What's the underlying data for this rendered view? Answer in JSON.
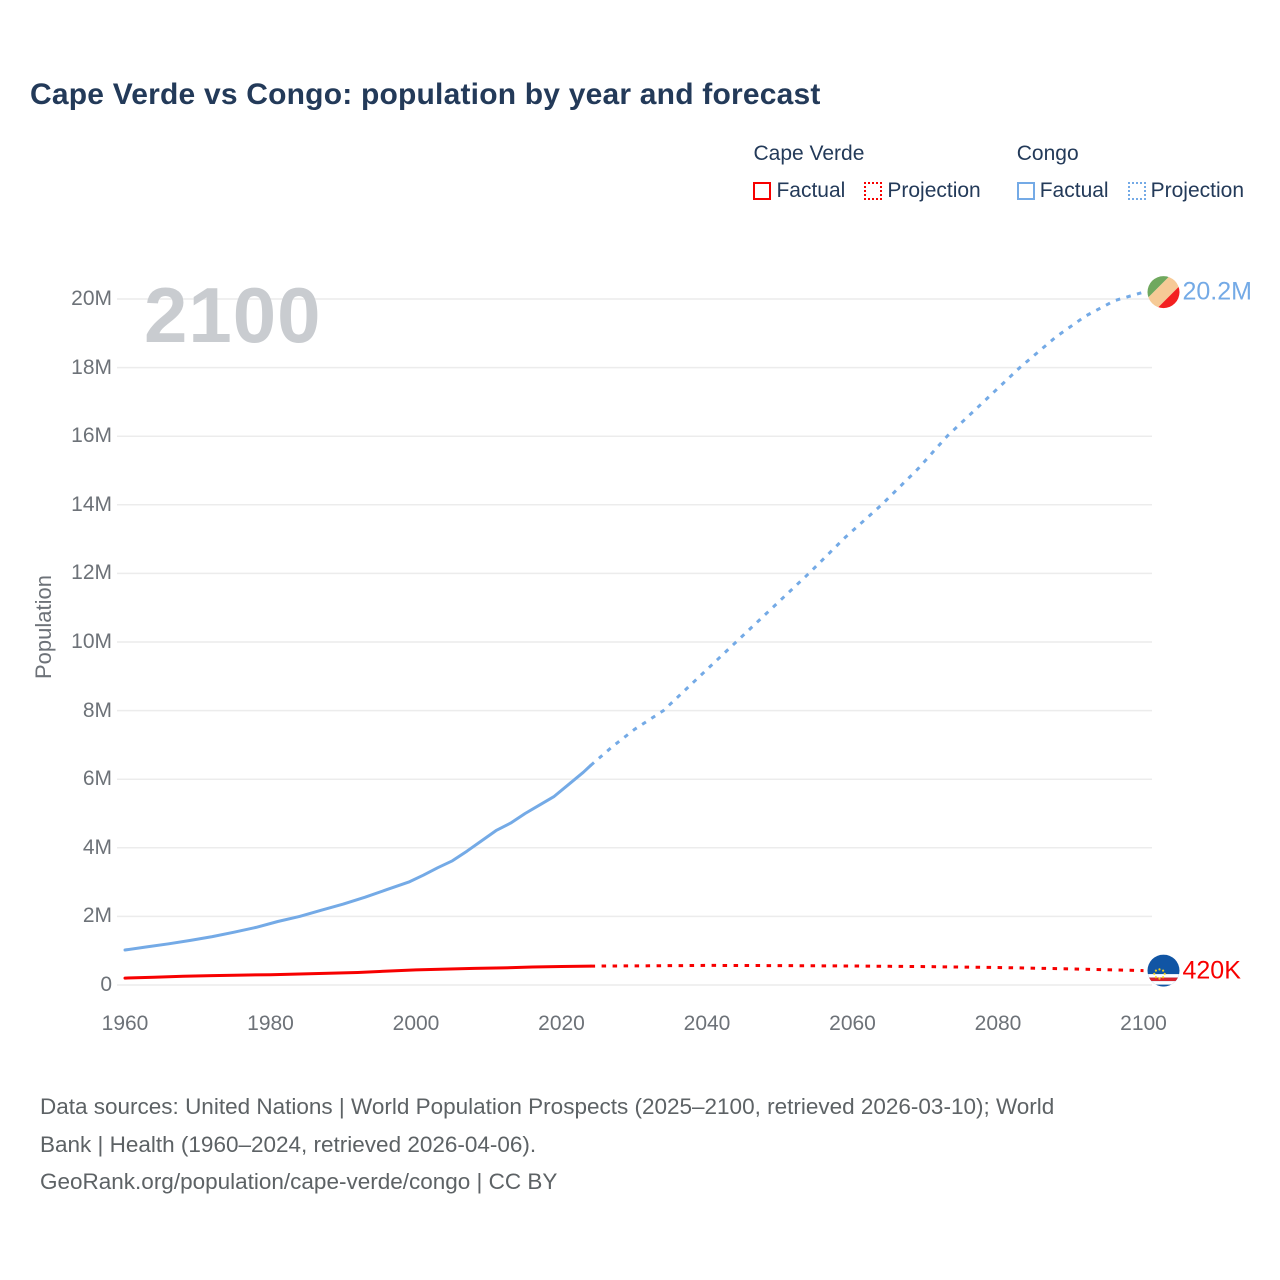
{
  "header": {
    "title": "Cape Verde vs Congo: population by year and forecast"
  },
  "legend": {
    "groups": [
      {
        "label": "Cape Verde",
        "items": [
          {
            "label": "Factual",
            "style": "solid",
            "color": "#f70000"
          },
          {
            "label": "Projection",
            "style": "dotted",
            "color": "#f70000"
          }
        ]
      },
      {
        "label": "Congo",
        "items": [
          {
            "label": "Factual",
            "style": "solid",
            "color": "#74aae6"
          },
          {
            "label": "Projection",
            "style": "dotted",
            "color": "#74aae6"
          }
        ]
      }
    ]
  },
  "footer": {
    "lines": [
      "Data sources: United Nations | World Population Prospects (2025–2100, retrieved 2026-03-10); World",
      "Bank | Health (1960–2024, retrieved 2026-04-06).",
      "GeoRank.org/population/cape-verde/congo | CC BY"
    ]
  },
  "colors": {
    "cape_verde": "#f70000",
    "congo": "#74aae6",
    "heading_navy": "#233a59",
    "axis_gray": "#6d7278",
    "watermark_gray": "#c9ccd0",
    "gridline_gray": "#ececec",
    "footer_gray": "#5d6265"
  },
  "chart_data": {
    "type": "line",
    "title": "Cape Verde vs Congo: population by year and forecast",
    "watermark": "2100",
    "xlabel": "",
    "y_axis_label": "Population",
    "units": "millions of people",
    "x_range": [
      1960,
      2100
    ],
    "y_range_millions": [
      0,
      20.55
    ],
    "grid": "horizontal",
    "legend_position": "top-right",
    "x_ticks": [
      1960,
      1980,
      2000,
      2020,
      2040,
      2060,
      2080,
      2100
    ],
    "y_ticks": [
      {
        "value_m": 0,
        "label": "0"
      },
      {
        "value_m": 2,
        "label": "2M"
      },
      {
        "value_m": 4,
        "label": "4M"
      },
      {
        "value_m": 6,
        "label": "6M"
      },
      {
        "value_m": 8,
        "label": "8M"
      },
      {
        "value_m": 10,
        "label": "10M"
      },
      {
        "value_m": 12,
        "label": "12M"
      },
      {
        "value_m": 14,
        "label": "14M"
      },
      {
        "value_m": 16,
        "label": "16M"
      },
      {
        "value_m": 18,
        "label": "18M"
      },
      {
        "value_m": 20,
        "label": "20M"
      }
    ],
    "series": [
      {
        "country": "Congo",
        "segment": "Factual",
        "style": "solid",
        "color": "#74aae6",
        "points": [
          [
            1960,
            1.02
          ],
          [
            1963,
            1.11
          ],
          [
            1966,
            1.2
          ],
          [
            1969,
            1.3
          ],
          [
            1972,
            1.41
          ],
          [
            1975,
            1.54
          ],
          [
            1978,
            1.68
          ],
          [
            1981,
            1.85
          ],
          [
            1984,
            2.0
          ],
          [
            1987,
            2.18
          ],
          [
            1990,
            2.36
          ],
          [
            1993,
            2.56
          ],
          [
            1996,
            2.78
          ],
          [
            1999,
            3.0
          ],
          [
            2001,
            3.2
          ],
          [
            2003,
            3.42
          ],
          [
            2005,
            3.62
          ],
          [
            2007,
            3.9
          ],
          [
            2009,
            4.2
          ],
          [
            2011,
            4.5
          ],
          [
            2013,
            4.72
          ],
          [
            2015,
            5.0
          ],
          [
            2017,
            5.25
          ],
          [
            2019,
            5.5
          ],
          [
            2021,
            5.85
          ],
          [
            2023,
            6.2
          ],
          [
            2024,
            6.4
          ]
        ]
      },
      {
        "country": "Congo",
        "segment": "Projection",
        "style": "dotted",
        "color": "#74aae6",
        "end_label": "20.2M",
        "flag": "congo",
        "points": [
          [
            2024,
            6.4
          ],
          [
            2027,
            6.95
          ],
          [
            2030,
            7.45
          ],
          [
            2034,
            8.0
          ],
          [
            2039,
            9.0
          ],
          [
            2044,
            10.0
          ],
          [
            2049,
            11.0
          ],
          [
            2054,
            12.0
          ],
          [
            2059,
            13.05
          ],
          [
            2064,
            14.0
          ],
          [
            2069,
            15.05
          ],
          [
            2073,
            16.0
          ],
          [
            2078,
            17.0
          ],
          [
            2083,
            18.0
          ],
          [
            2088,
            18.9
          ],
          [
            2092,
            19.5
          ],
          [
            2096,
            19.95
          ],
          [
            2100,
            20.2
          ]
        ]
      },
      {
        "country": "Cape Verde",
        "segment": "Factual",
        "style": "solid",
        "color": "#f70000",
        "points": [
          [
            1960,
            0.2
          ],
          [
            1964,
            0.225
          ],
          [
            1968,
            0.255
          ],
          [
            1972,
            0.275
          ],
          [
            1976,
            0.29
          ],
          [
            1980,
            0.3
          ],
          [
            1984,
            0.32
          ],
          [
            1988,
            0.34
          ],
          [
            1992,
            0.365
          ],
          [
            1996,
            0.405
          ],
          [
            2000,
            0.44
          ],
          [
            2004,
            0.465
          ],
          [
            2008,
            0.485
          ],
          [
            2012,
            0.5
          ],
          [
            2016,
            0.525
          ],
          [
            2020,
            0.54
          ],
          [
            2024,
            0.55
          ]
        ]
      },
      {
        "country": "Cape Verde",
        "segment": "Projection",
        "style": "dotted",
        "color": "#f70000",
        "end_label": "420K",
        "flag": "cape-verde",
        "points": [
          [
            2024,
            0.55
          ],
          [
            2032,
            0.56
          ],
          [
            2040,
            0.57
          ],
          [
            2050,
            0.565
          ],
          [
            2060,
            0.555
          ],
          [
            2070,
            0.535
          ],
          [
            2080,
            0.51
          ],
          [
            2090,
            0.47
          ],
          [
            2100,
            0.42
          ]
        ]
      }
    ]
  }
}
